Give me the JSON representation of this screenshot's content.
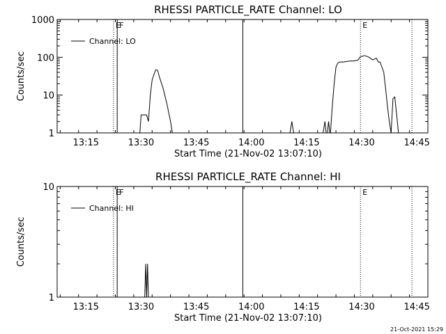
{
  "chart_data": [
    {
      "type": "line",
      "title": "RHESSI PARTICLE_RATE Channel: LO",
      "xlabel": "Start Time (21-Nov-02 13:07:10)",
      "ylabel": "Counts/sec",
      "y_scale": "log",
      "ylim": [
        1,
        1000
      ],
      "xlim": [
        "13:07:10",
        "14:48:00"
      ],
      "x_ticks": [
        "13:15",
        "13:30",
        "13:45",
        "14:00",
        "14:15",
        "14:30",
        "14:45"
      ],
      "y_ticks": [
        "1",
        "10",
        "100",
        "1000"
      ],
      "legend": {
        "label": "Channel: LO",
        "position": "top-left"
      },
      "markers": [
        {
          "time": "13:22:30",
          "label": "E",
          "style": "dotted"
        },
        {
          "time": "13:23:30",
          "label": "F",
          "style": "solid"
        },
        {
          "time": "13:57:40",
          "label": "",
          "style": "solid"
        },
        {
          "time": "14:29:40",
          "label": "E",
          "style": "dotted"
        },
        {
          "time": "14:43:40",
          "label": "",
          "style": "dotted"
        }
      ],
      "series": [
        {
          "name": "Channel: LO",
          "x": [
            "13:29:40",
            "13:30:00",
            "13:31:30",
            "13:32:00",
            "13:32:30",
            "13:33:00",
            "13:33:30",
            "13:34:00",
            "13:34:30",
            "13:35:00",
            "13:36:00",
            "13:37:00",
            "13:38:00",
            "13:38:30"
          ],
          "y": [
            1,
            3,
            3,
            2,
            10,
            25,
            35,
            47,
            45,
            30,
            15,
            6,
            2,
            1
          ]
        },
        {
          "name": "",
          "x": [
            "14:10:30",
            "14:11:00",
            "14:11:30"
          ],
          "y": [
            1,
            2,
            1
          ]
        },
        {
          "name": "",
          "x": [
            "14:19:30",
            "14:20:00",
            "14:20:20",
            "14:20:40",
            "14:21:00",
            "14:21:20"
          ],
          "y": [
            1,
            2,
            1,
            1,
            2,
            1
          ]
        },
        {
          "name": "",
          "x": [
            "14:21:30",
            "14:22:00",
            "14:22:30",
            "14:23:00",
            "14:23:30",
            "14:24:00",
            "14:25:00",
            "14:26:00",
            "14:27:00",
            "14:28:00",
            "14:29:00",
            "14:29:30",
            "14:30:00",
            "14:30:30",
            "14:31:00",
            "14:32:00",
            "14:33:00",
            "14:34:00",
            "14:34:30",
            "14:35:00",
            "14:36:00",
            "14:36:30",
            "14:37:00",
            "14:37:30",
            "14:38:00",
            "14:38:30",
            "14:39:00",
            "14:39:30",
            "14:40:00"
          ],
          "y": [
            1,
            5,
            20,
            55,
            70,
            75,
            75,
            78,
            80,
            80,
            85,
            100,
            105,
            110,
            110,
            100,
            85,
            95,
            75,
            75,
            40,
            15,
            5,
            2,
            1,
            8,
            9,
            3,
            1
          ]
        }
      ]
    },
    {
      "type": "line",
      "title": "RHESSI PARTICLE_RATE Channel: HI",
      "xlabel": "Start Time (21-Nov-02 13:07:10)",
      "ylabel": "Counts/sec",
      "y_scale": "log",
      "ylim": [
        1,
        10
      ],
      "xlim": [
        "13:07:10",
        "14:48:00"
      ],
      "x_ticks": [
        "13:15",
        "13:30",
        "13:45",
        "14:00",
        "14:15",
        "14:30",
        "14:45"
      ],
      "y_ticks": [
        "1",
        "10"
      ],
      "legend": {
        "label": "Channel: HI",
        "position": "top-left"
      },
      "markers": [
        {
          "time": "13:22:30",
          "label": "E",
          "style": "dotted"
        },
        {
          "time": "13:23:30",
          "label": "F",
          "style": "solid"
        },
        {
          "time": "13:57:40",
          "label": "",
          "style": "solid"
        },
        {
          "time": "14:29:40",
          "label": "E",
          "style": "dotted"
        },
        {
          "time": "14:43:40",
          "label": "",
          "style": "dotted"
        }
      ],
      "series": [
        {
          "name": "Channel: HI",
          "x": [
            "13:31:00",
            "13:31:15",
            "13:31:30",
            "13:31:45",
            "13:32:00"
          ],
          "y": [
            1,
            2,
            1,
            2,
            1
          ]
        }
      ]
    }
  ],
  "footer": {
    "date": "21-Oct-2021 15:29"
  }
}
